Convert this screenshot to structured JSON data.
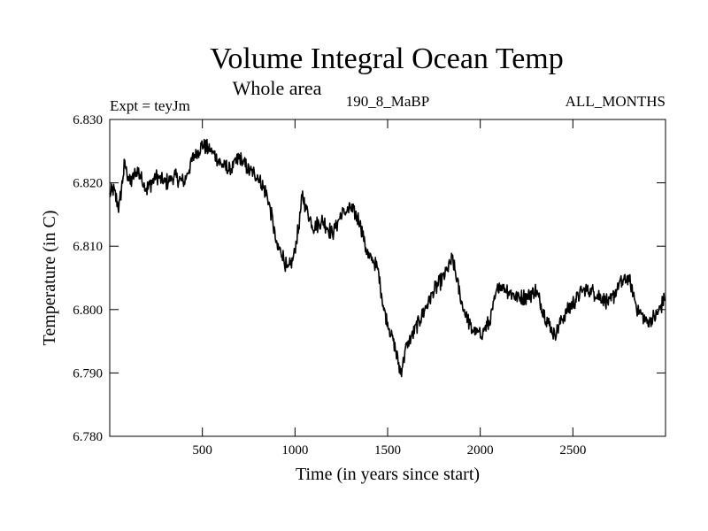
{
  "chart_data": {
    "type": "line",
    "title": "Volume Integral Ocean Temp",
    "subtitle": "Whole area",
    "header_left": "Expt = teyJm",
    "header_center": "190_8_MaBP",
    "header_right": "ALL_MONTHS",
    "xlabel": "Time (in years since start)",
    "ylabel": "Temperature (in C)",
    "xlim": [
      0,
      3000
    ],
    "ylim": [
      6.78,
      6.83
    ],
    "xticks": [
      500,
      1000,
      1500,
      2000,
      2500
    ],
    "xtick_labels": [
      "500",
      "1000",
      "1500",
      "2000",
      "2500"
    ],
    "yticks": [
      6.78,
      6.79,
      6.8,
      6.81,
      6.82,
      6.83
    ],
    "ytick_labels": [
      "6.780",
      "6.790",
      "6.800",
      "6.810",
      "6.820",
      "6.830"
    ],
    "grid": false,
    "legend": "none",
    "series": [
      {
        "name": "Temperature",
        "x": [
          0,
          20,
          50,
          80,
          110,
          150,
          200,
          250,
          300,
          350,
          400,
          450,
          500,
          550,
          600,
          650,
          700,
          750,
          800,
          850,
          880,
          900,
          930,
          960,
          990,
          1020,
          1040,
          1060,
          1100,
          1150,
          1200,
          1250,
          1300,
          1350,
          1380,
          1400,
          1420,
          1450,
          1480,
          1510,
          1540,
          1570,
          1600,
          1650,
          1700,
          1750,
          1800,
          1850,
          1900,
          1950,
          2000,
          2050,
          2100,
          2150,
          2200,
          2250,
          2300,
          2350,
          2400,
          2450,
          2500,
          2550,
          2600,
          2650,
          2700,
          2750,
          2800,
          2850,
          2900,
          2950,
          3000
        ],
        "values": [
          6.818,
          6.819,
          6.816,
          6.823,
          6.82,
          6.822,
          6.819,
          6.821,
          6.82,
          6.821,
          6.82,
          6.824,
          6.826,
          6.825,
          6.823,
          6.822,
          6.824,
          6.822,
          6.821,
          6.818,
          6.814,
          6.81,
          6.809,
          6.806,
          6.808,
          6.813,
          6.818,
          6.816,
          6.813,
          6.814,
          6.812,
          6.815,
          6.816,
          6.814,
          6.81,
          6.808,
          6.808,
          6.806,
          6.8,
          6.797,
          6.794,
          6.79,
          6.794,
          6.797,
          6.8,
          6.803,
          6.805,
          6.808,
          6.801,
          6.797,
          6.796,
          6.798,
          6.804,
          6.803,
          6.802,
          6.802,
          6.803,
          6.799,
          6.796,
          6.799,
          6.801,
          6.803,
          6.803,
          6.802,
          6.801,
          6.804,
          6.805,
          6.8,
          6.798,
          6.799,
          6.802
        ]
      }
    ]
  }
}
